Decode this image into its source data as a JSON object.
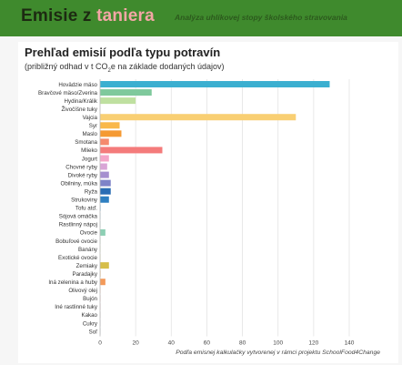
{
  "header": {
    "title_part1": "Emisie z ",
    "title_part2": "taniera",
    "tagline": "Analýza uhlíkovej stopy školského stravovania",
    "accent_color": "#f4a6a6",
    "background_color": "#3f8a2d"
  },
  "chart_data": {
    "type": "bar",
    "orientation": "horizontal",
    "title": "Prehľad emisií podľa typu potravín",
    "subtitle_before": "(približný odhad v t CO",
    "subtitle_sub": "2",
    "subtitle_after": "e na základe dodaných údajov)",
    "xlabel": "",
    "ylabel": "",
    "xlim": [
      0,
      140
    ],
    "xticks": [
      "0",
      "20",
      "40",
      "60",
      "80",
      "100",
      "120",
      "140"
    ],
    "grid": "vertical",
    "categories": [
      "Hovädzie mäso",
      "Bravčové mäso/Zverina",
      "Hydina/Králik",
      "Živočíšne tuky",
      "Vajcia",
      "Syr",
      "Maslo",
      "Smotana",
      "Mlieko",
      "Jogurt",
      "Chovné ryby",
      "Divoké ryby",
      "Obilniny, múka",
      "Ryža",
      "Strukoviny",
      "Tofu atď.",
      "Sójová omáčka",
      "Rastlinný nápoj",
      "Ovocie",
      "Bobuľové ovocie",
      "Banány",
      "Exotické ovocie",
      "Zemiaky",
      "Paradajky",
      "Iná zelenina a huby",
      "Olivový olej",
      "Bujón",
      "Iné rastlinné tuky",
      "Kakao",
      "Cukry",
      "Soľ"
    ],
    "values": [
      129,
      29,
      20,
      0,
      110,
      11,
      12,
      5,
      35,
      5,
      4,
      5,
      6,
      6,
      5,
      0.3,
      0.2,
      0.2,
      3,
      0.2,
      0.2,
      0.2,
      5,
      0.3,
      3,
      0.2,
      0.2,
      0.2,
      0.2,
      0.2,
      0.2
    ],
    "colors": [
      "#3bafd0",
      "#7fc99c",
      "#bfe0a0",
      "#c9b89a",
      "#f9cf73",
      "#f9b84a",
      "#f59a33",
      "#f58a6e",
      "#f47b7b",
      "#f4a5c8",
      "#d9a5d6",
      "#a58fcf",
      "#7e83c8",
      "#2a6db4",
      "#2e7fc1",
      "#5aa4d6",
      "#6ab8d8",
      "#79c4c0",
      "#8dcfb4",
      "#a7d89e",
      "#c3dd8c",
      "#d7d873",
      "#d6be4a",
      "#f0b055",
      "#f39a5a",
      "#e88566",
      "#d27a6d",
      "#c47e8c",
      "#a07f98",
      "#8e8ea6",
      "#8a9ab0"
    ]
  },
  "footnote": "Podľa emisnej kalkulačky vytvorenej v rámci projektu SchoolFood4Change"
}
